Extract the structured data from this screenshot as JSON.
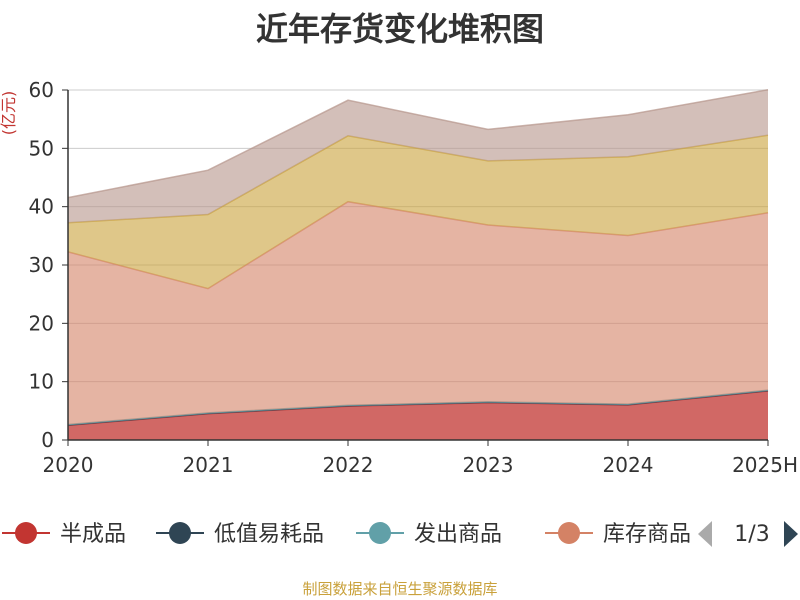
{
  "chart_data": {
    "type": "area",
    "stacked": true,
    "title": "近年存货变化堆积图",
    "ylabel": "(亿元)",
    "x": [
      "2020",
      "2021",
      "2022",
      "2023",
      "2024",
      "2025H"
    ],
    "ylim": [
      0,
      60
    ],
    "yticks": [
      0,
      10,
      20,
      30,
      40,
      50,
      60
    ],
    "grid": true,
    "series": [
      {
        "name": "半成品",
        "color": "#c23531",
        "values": [
          2.5,
          4.5,
          5.8,
          6.4,
          6.0,
          8.4
        ]
      },
      {
        "name": "低值易耗品",
        "color": "#2f4554",
        "values": [
          0.05,
          0.05,
          0.05,
          0.05,
          0.05,
          0.05
        ]
      },
      {
        "name": "发出商品",
        "color": "#61a0a8",
        "values": [
          0.1,
          0.1,
          0.1,
          0.1,
          0.1,
          0.1
        ]
      },
      {
        "name": "库存商品",
        "color": "#d48265",
        "values": [
          29.6,
          21.3,
          34.9,
          30.3,
          28.9,
          30.4
        ]
      },
      {
        "color": "#c9a13b",
        "values": [
          5.0,
          12.7,
          11.3,
          11.0,
          13.5,
          13.3
        ]
      },
      {
        "color": "#b5948a",
        "values": [
          4.3,
          7.6,
          6.1,
          5.4,
          7.2,
          7.8
        ]
      }
    ],
    "legend": {
      "visible_items": [
        "半成品",
        "低值易耗品",
        "发出商品",
        "库存商品"
      ],
      "page_indicator": "1/3",
      "placement": "bottom"
    },
    "source_text": "制图数据来自恒生聚源数据库"
  }
}
